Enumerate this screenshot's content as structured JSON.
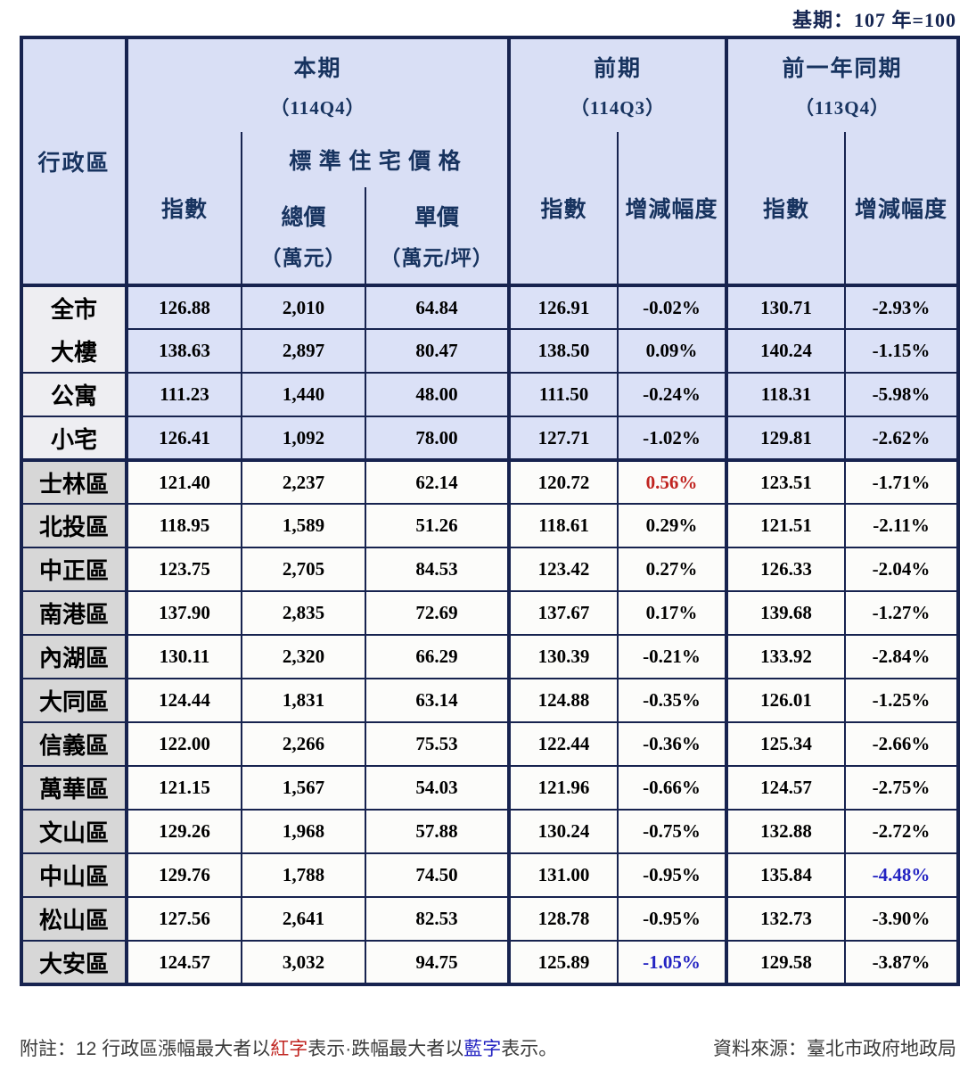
{
  "meta": {
    "base_period_note": "基期：107 年=100"
  },
  "colors": {
    "border_navy": "#17234f",
    "header_bg": "#d9dff5",
    "summary_row_bg": "#dbe1f7",
    "district_row_bg": "#fcfcfa",
    "summary_label_bg": "#eeeef2",
    "district_label_bg": "#d7d7d7",
    "highlight_red": "#c02420",
    "highlight_blue": "#2323c2",
    "header_text": "#17335f"
  },
  "table": {
    "header": {
      "region_label": "行政區",
      "groups": [
        {
          "title": "本期",
          "period": "（114Q4）",
          "index_label": "指數",
          "std_price_label": "標準住宅價格",
          "total_label": "總價",
          "total_unit": "（萬元）",
          "unit_label": "單價",
          "unit_unit": "（萬元/坪）"
        },
        {
          "title": "前期",
          "period": "（114Q3）",
          "index_label": "指數",
          "change_label": "增減幅度"
        },
        {
          "title": "前一年同期",
          "period": "（113Q4）",
          "index_label": "指數",
          "change_label": "增減幅度"
        }
      ]
    },
    "rows": [
      {
        "label": "全市",
        "type": "summary",
        "no_bottom_label": true,
        "cells": [
          "126.88",
          "2,010",
          "64.84",
          "126.91",
          "-0.02%",
          "130.71",
          "-2.93%"
        ]
      },
      {
        "label": "大樓",
        "type": "summary",
        "cells": [
          "138.63",
          "2,897",
          "80.47",
          "138.50",
          "0.09%",
          "140.24",
          "-1.15%"
        ]
      },
      {
        "label": "公寓",
        "type": "summary",
        "cells": [
          "111.23",
          "1,440",
          "48.00",
          "111.50",
          "-0.24%",
          "118.31",
          "-5.98%"
        ]
      },
      {
        "label": "小宅",
        "type": "summary",
        "thick_bottom": true,
        "cells": [
          "126.41",
          "1,092",
          "78.00",
          "127.71",
          "-1.02%",
          "129.81",
          "-2.62%"
        ]
      },
      {
        "label": "士林區",
        "type": "district",
        "highlights": {
          "4": "red"
        },
        "cells": [
          "121.40",
          "2,237",
          "62.14",
          "120.72",
          "0.56%",
          "123.51",
          "-1.71%"
        ]
      },
      {
        "label": "北投區",
        "type": "district",
        "cells": [
          "118.95",
          "1,589",
          "51.26",
          "118.61",
          "0.29%",
          "121.51",
          "-2.11%"
        ]
      },
      {
        "label": "中正區",
        "type": "district",
        "cells": [
          "123.75",
          "2,705",
          "84.53",
          "123.42",
          "0.27%",
          "126.33",
          "-2.04%"
        ]
      },
      {
        "label": "南港區",
        "type": "district",
        "cells": [
          "137.90",
          "2,835",
          "72.69",
          "137.67",
          "0.17%",
          "139.68",
          "-1.27%"
        ]
      },
      {
        "label": "內湖區",
        "type": "district",
        "cells": [
          "130.11",
          "2,320",
          "66.29",
          "130.39",
          "-0.21%",
          "133.92",
          "-2.84%"
        ]
      },
      {
        "label": "大同區",
        "type": "district",
        "cells": [
          "124.44",
          "1,831",
          "63.14",
          "124.88",
          "-0.35%",
          "126.01",
          "-1.25%"
        ]
      },
      {
        "label": "信義區",
        "type": "district",
        "cells": [
          "122.00",
          "2,266",
          "75.53",
          "122.44",
          "-0.36%",
          "125.34",
          "-2.66%"
        ]
      },
      {
        "label": "萬華區",
        "type": "district",
        "cells": [
          "121.15",
          "1,567",
          "54.03",
          "121.96",
          "-0.66%",
          "124.57",
          "-2.75%"
        ]
      },
      {
        "label": "文山區",
        "type": "district",
        "cells": [
          "129.26",
          "1,968",
          "57.88",
          "130.24",
          "-0.75%",
          "132.88",
          "-2.72%"
        ]
      },
      {
        "label": "中山區",
        "type": "district",
        "highlights": {
          "6": "blue"
        },
        "cells": [
          "129.76",
          "1,788",
          "74.50",
          "131.00",
          "-0.95%",
          "135.84",
          "-4.48%"
        ]
      },
      {
        "label": "松山區",
        "type": "district",
        "cells": [
          "127.56",
          "2,641",
          "82.53",
          "128.78",
          "-0.95%",
          "132.73",
          "-3.90%"
        ]
      },
      {
        "label": "大安區",
        "type": "district",
        "highlights": {
          "4": "blue"
        },
        "cells": [
          "124.57",
          "3,032",
          "94.75",
          "125.89",
          "-1.05%",
          "129.58",
          "-3.87%"
        ]
      }
    ]
  },
  "footer": {
    "note_prefix": "附註：12 行政區漲幅最大者以",
    "note_red": "紅字",
    "note_mid": "表示·跌幅最大者以",
    "note_blue": "藍字",
    "note_suffix": "表示。",
    "source": "資料來源：臺北市政府地政局"
  }
}
